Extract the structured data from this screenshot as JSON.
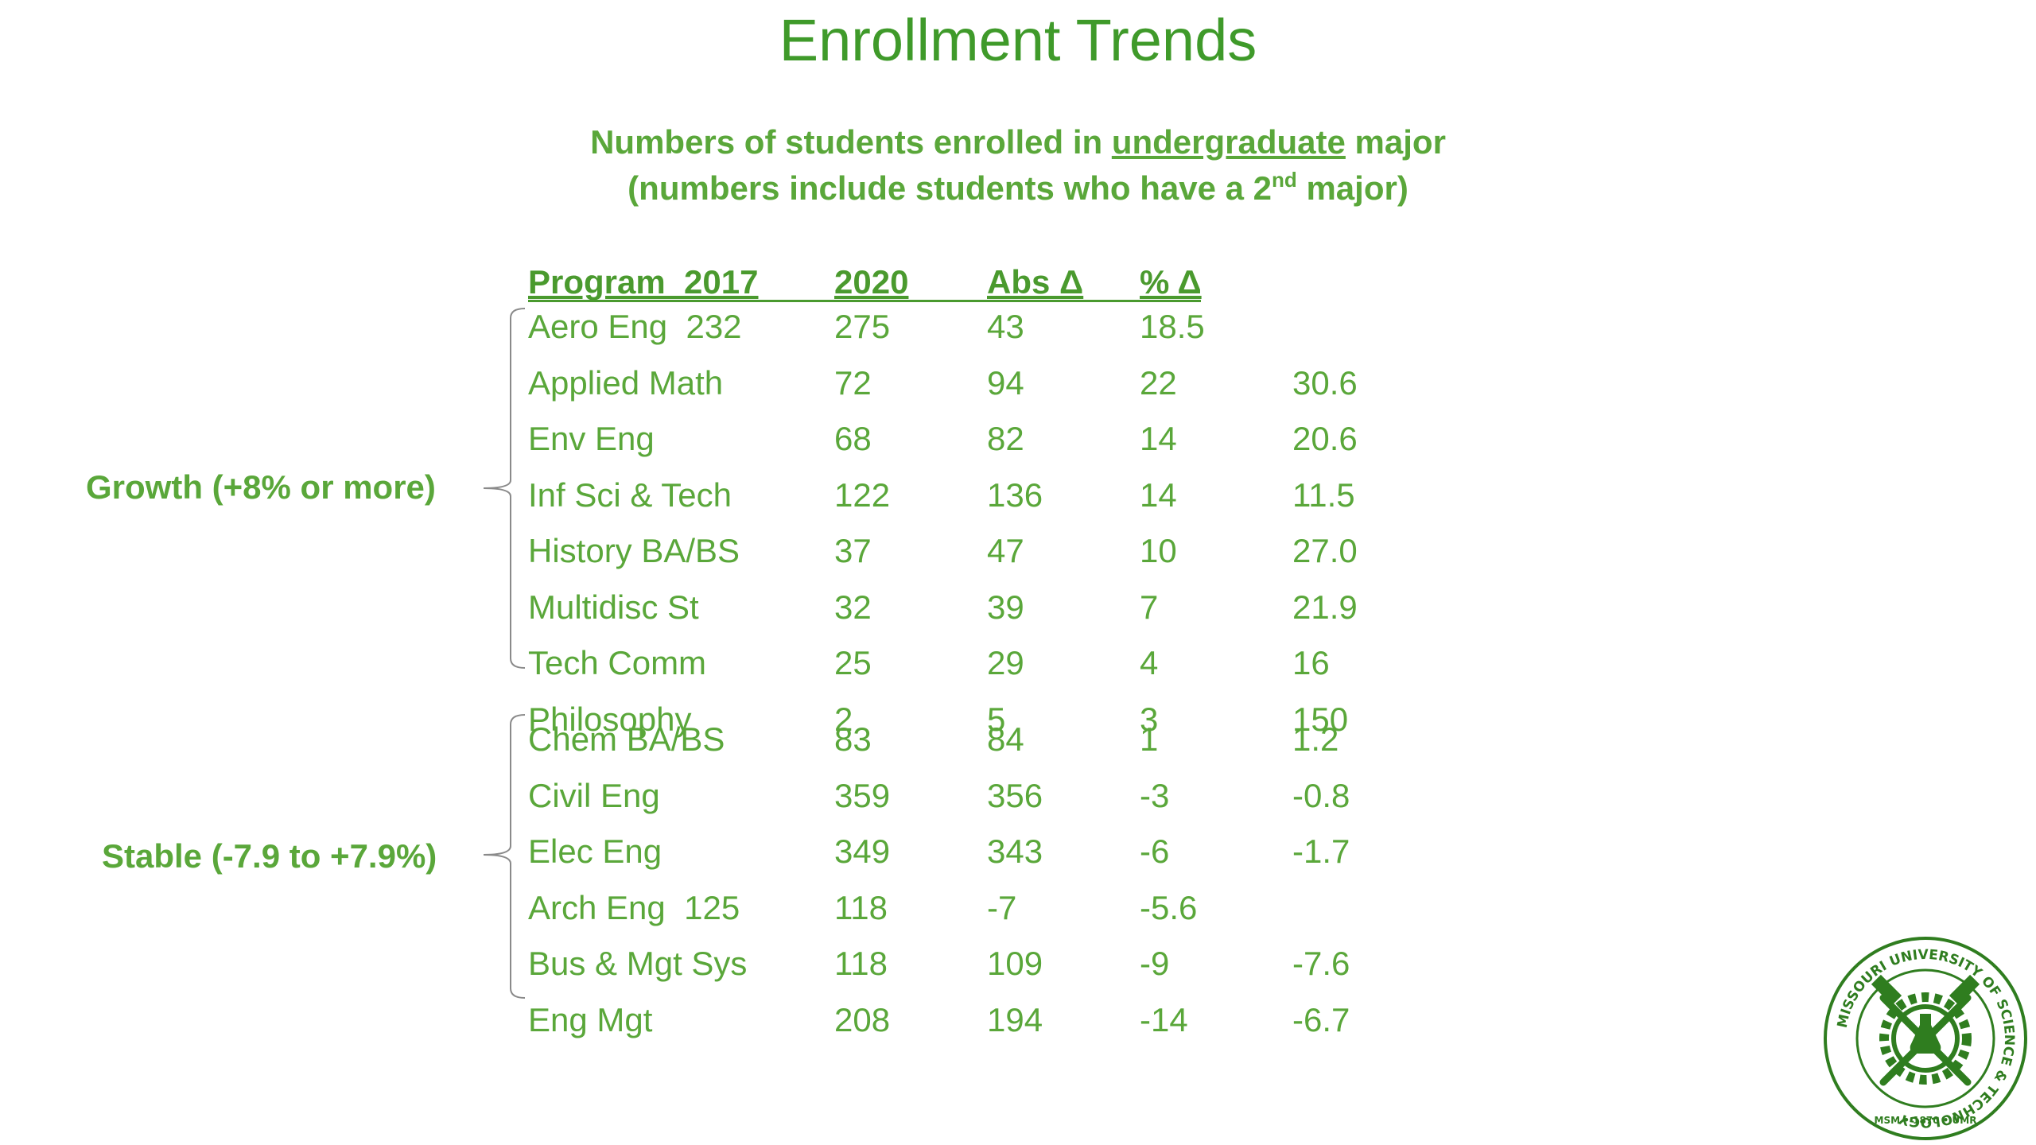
{
  "title": "Enrollment Trends",
  "subtitle": {
    "line1_pre": "Numbers of students enrolled in ",
    "line1_underlined": "undergraduate",
    "line1_post": " major",
    "line2_pre": "(numbers include students who have a 2",
    "line2_sup": "nd",
    "line2_post": " major)"
  },
  "table": {
    "headers": [
      "Program  2017",
      "2020",
      "Abs Δ",
      "% Δ"
    ],
    "growth": {
      "label": "Growth (+8% or more)",
      "rows": [
        [
          "Aero Eng  232",
          "275",
          "43",
          "18.5",
          ""
        ],
        [
          "Applied Math",
          "72",
          "94",
          "22",
          "30.6"
        ],
        [
          "Env Eng",
          "68",
          "82",
          "14",
          "20.6"
        ],
        [
          "Inf Sci & Tech",
          "122",
          "136",
          "14",
          "11.5"
        ],
        [
          "History BA/BS",
          "37",
          "47",
          "10",
          "27.0"
        ],
        [
          "Multidisc St",
          "32",
          "39",
          "7",
          "21.9"
        ],
        [
          "Tech Comm",
          "25",
          "29",
          "4",
          "16"
        ],
        [
          "Philosophy",
          "2",
          "5",
          "3",
          "150"
        ]
      ]
    },
    "stable": {
      "label": "Stable (-7.9 to +7.9%)",
      "rows": [
        [
          "Chem BA/BS",
          "83",
          "84",
          "1",
          "1.2"
        ],
        [
          "Civil Eng",
          "359",
          "356",
          "-3",
          "-0.8"
        ],
        [
          "Elec Eng",
          "349",
          "343",
          "-6",
          "-1.7"
        ],
        [
          "Arch Eng  125",
          "118",
          "-7",
          "-5.6",
          ""
        ],
        [
          "Bus & Mgt Sys",
          "118",
          "109",
          "-9",
          "-7.6"
        ],
        [
          "Eng Mgt",
          "208",
          "194",
          "-14",
          "-6.7"
        ]
      ]
    }
  },
  "logo": {
    "ring_text": "MISSOURI UNIVERSITY OF SCIENCE & TECHNOLOGY",
    "bottom_text": "MSM • 1870 • UMR",
    "color": "#2f7d1f"
  },
  "colors": {
    "title": "#3f9a2a",
    "text": "#5aa73a",
    "header": "#4a9a2e",
    "brace": "#8a8a8a"
  }
}
